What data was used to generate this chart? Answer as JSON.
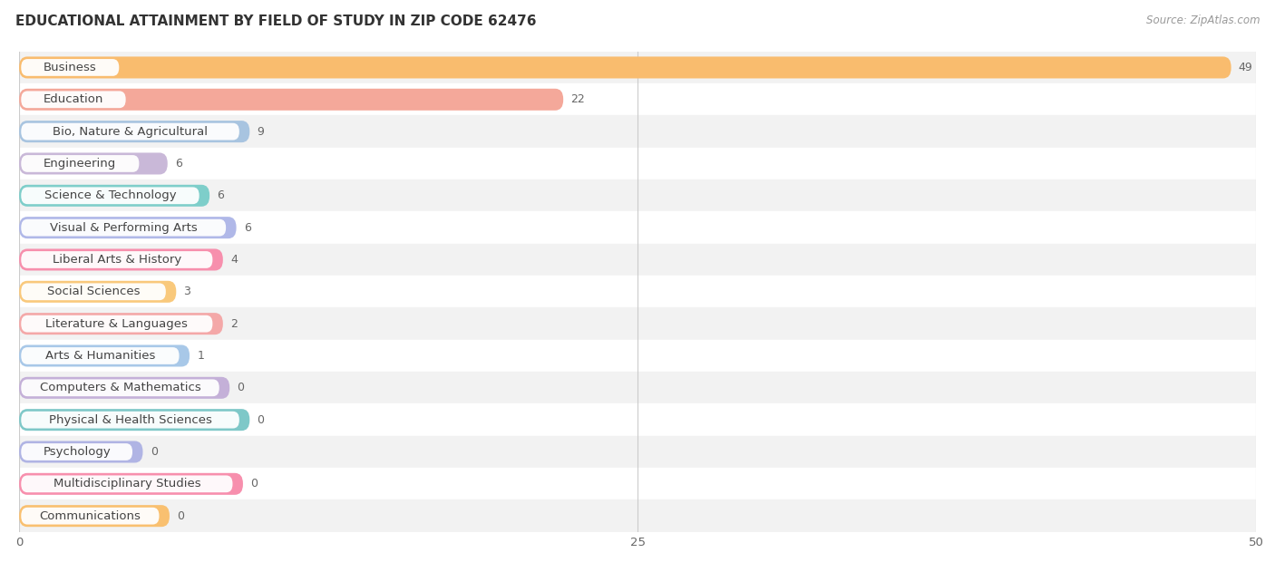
{
  "title": "EDUCATIONAL ATTAINMENT BY FIELD OF STUDY IN ZIP CODE 62476",
  "source": "Source: ZipAtlas.com",
  "categories": [
    "Business",
    "Education",
    "Bio, Nature & Agricultural",
    "Engineering",
    "Science & Technology",
    "Visual & Performing Arts",
    "Liberal Arts & History",
    "Social Sciences",
    "Literature & Languages",
    "Arts & Humanities",
    "Computers & Mathematics",
    "Physical & Health Sciences",
    "Psychology",
    "Multidisciplinary Studies",
    "Communications"
  ],
  "values": [
    49,
    22,
    9,
    6,
    6,
    6,
    4,
    3,
    2,
    1,
    0,
    0,
    0,
    0,
    0
  ],
  "bar_colors": [
    "#F9BC6E",
    "#F4A89A",
    "#A8C4E0",
    "#C9B8D8",
    "#7ECECA",
    "#B0B8E8",
    "#F78FAD",
    "#F9C97C",
    "#F4A8A8",
    "#A8C8E8",
    "#C4B0D8",
    "#7EC8C8",
    "#B0B4E4",
    "#F78FAD",
    "#F9C070"
  ],
  "background_color": "#FFFFFF",
  "row_bg_colors": [
    "#F2F2F2",
    "#FFFFFF"
  ],
  "xlim": [
    0,
    50
  ],
  "xticks": [
    0,
    25,
    50
  ],
  "title_fontsize": 11,
  "label_fontsize": 9.5,
  "value_fontsize": 9,
  "bar_height": 0.68,
  "min_bar_width": 8.5
}
